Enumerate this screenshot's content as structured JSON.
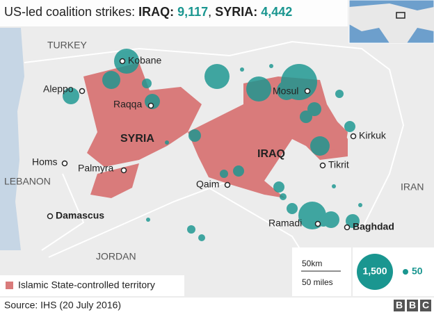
{
  "title": {
    "lead": "US-led coalition strikes:",
    "iraq_label": "IRAQ:",
    "iraq_value": "9,117",
    "syria_label": "SYRIA:",
    "syria_value": "4,442"
  },
  "countries": [
    "TURKEY",
    "SYRIA",
    "IRAQ",
    "LEBANON",
    "JORDAN",
    "IRAN"
  ],
  "cities": [
    "Kobane",
    "Aleppo",
    "Raqqa",
    "Mosul",
    "Kirkuk",
    "Tikrit",
    "Homs",
    "Palmyra",
    "Qaim",
    "Ramadi",
    "Baghdad",
    "Damascus"
  ],
  "scale": [
    "50km",
    "50 miles"
  ],
  "legend": {
    "territory": "Islamic State-controlled territory",
    "large": "1,500",
    "small": "50"
  },
  "source": "Source: IHS (20 July 2016)",
  "logo": [
    "B",
    "B",
    "C"
  ]
}
